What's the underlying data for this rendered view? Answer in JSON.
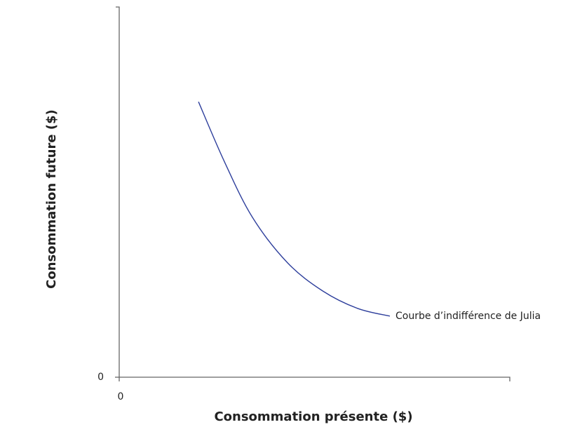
{
  "chart_data": {
    "type": "line",
    "x_label": "Consommation présente ($)",
    "y_label": "Consommation future ($)",
    "xlim": [
      0,
      100
    ],
    "ylim": [
      0,
      100
    ],
    "xticks": [
      0
    ],
    "yticks": [
      0
    ],
    "series": [
      {
        "name": "Courbe d’indifférence de Julia",
        "color": "#2e3f9c",
        "x": [
          20.3,
          26.9,
          34.1,
          43.1,
          52.1,
          61.0,
          69.3
        ],
        "values": [
          74.4,
          58.3,
          43.2,
          30.9,
          23.3,
          18.6,
          16.5
        ]
      }
    ]
  }
}
